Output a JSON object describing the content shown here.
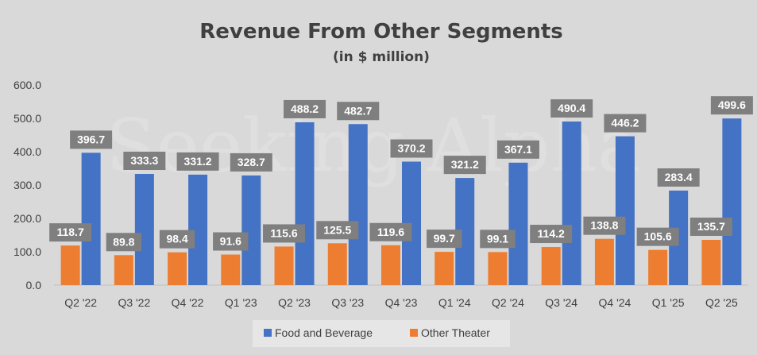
{
  "chart_data": {
    "type": "bar",
    "title": "Revenue From Other Segments",
    "subtitle": "(in $ million)",
    "categories": [
      "Q2 '22",
      "Q3 '22",
      "Q4 '22",
      "Q1 '23",
      "Q2 '23",
      "Q3 '23",
      "Q4 '23",
      "Q1 '24",
      "Q2 '24",
      "Q3 '24",
      "Q4 '24",
      "Q1 '25",
      "Q2 '25"
    ],
    "series": [
      {
        "name": "Food and Beverage",
        "color": "#4472c4",
        "values": [
          396.7,
          333.3,
          331.2,
          328.7,
          488.2,
          482.7,
          370.2,
          321.2,
          367.1,
          490.4,
          446.2,
          283.4,
          499.6
        ]
      },
      {
        "name": "Other Theater",
        "color": "#ed7d31",
        "values": [
          118.7,
          89.8,
          98.4,
          91.6,
          115.6,
          125.5,
          119.6,
          99.7,
          99.1,
          114.2,
          138.8,
          105.6,
          135.7
        ]
      }
    ],
    "ylim": [
      0,
      600
    ],
    "yticks": [
      "0.0",
      "100.0",
      "200.0",
      "300.0",
      "400.0",
      "500.0",
      "600.0"
    ],
    "xlabel": "",
    "ylabel": "",
    "legend": "bottom",
    "grid": false,
    "label_box_color": "#7f7f7f"
  },
  "watermark": "Seeking Alpha"
}
